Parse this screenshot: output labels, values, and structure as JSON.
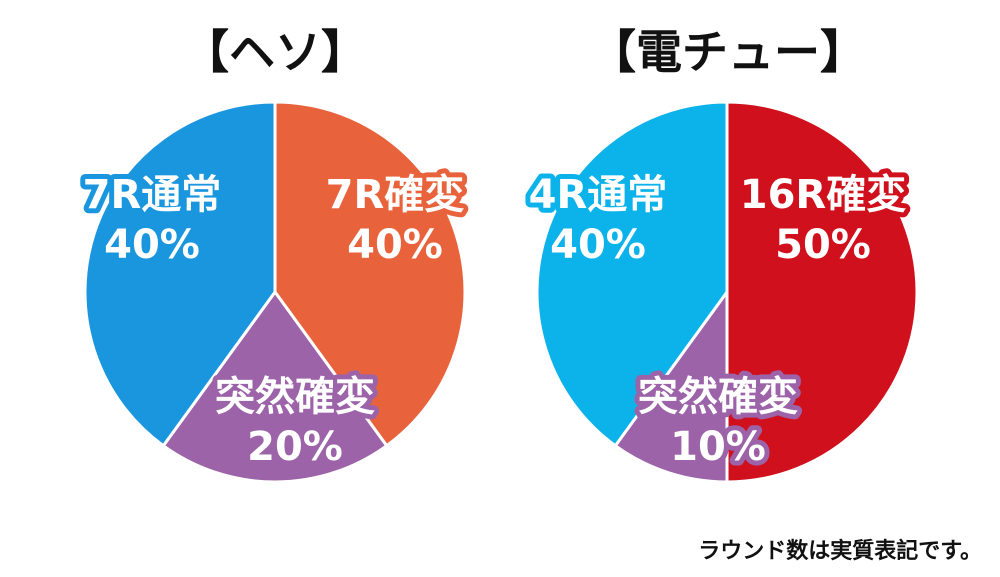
{
  "chart_data": [
    {
      "type": "pie",
      "title": "【ヘソ】",
      "slices": [
        {
          "name": "7R確変",
          "value": 40,
          "color": "#e8633c",
          "label_lines": [
            "7R確変",
            "40%"
          ]
        },
        {
          "name": "突然確変",
          "value": 20,
          "color": "#9c63a8",
          "label_lines": [
            "突然確変",
            "20%"
          ]
        },
        {
          "name": "7R通常",
          "value": 40,
          "color": "#1a96de",
          "label_lines": [
            "7R通常",
            "40%"
          ]
        }
      ]
    },
    {
      "type": "pie",
      "title": "【電チュー】",
      "slices": [
        {
          "name": "16R確変",
          "value": 50,
          "color": "#d0101c",
          "label_lines": [
            "16R確変",
            "50%"
          ]
        },
        {
          "name": "突然確変",
          "value": 10,
          "color": "#9c63a8",
          "label_lines": [
            "突然確変",
            "10%"
          ]
        },
        {
          "name": "4R通常",
          "value": 40,
          "color": "#0cb2ea",
          "label_lines": [
            "4R通常",
            "40%"
          ]
        }
      ]
    }
  ],
  "footnote": "ラウンド数は実質表記です。"
}
